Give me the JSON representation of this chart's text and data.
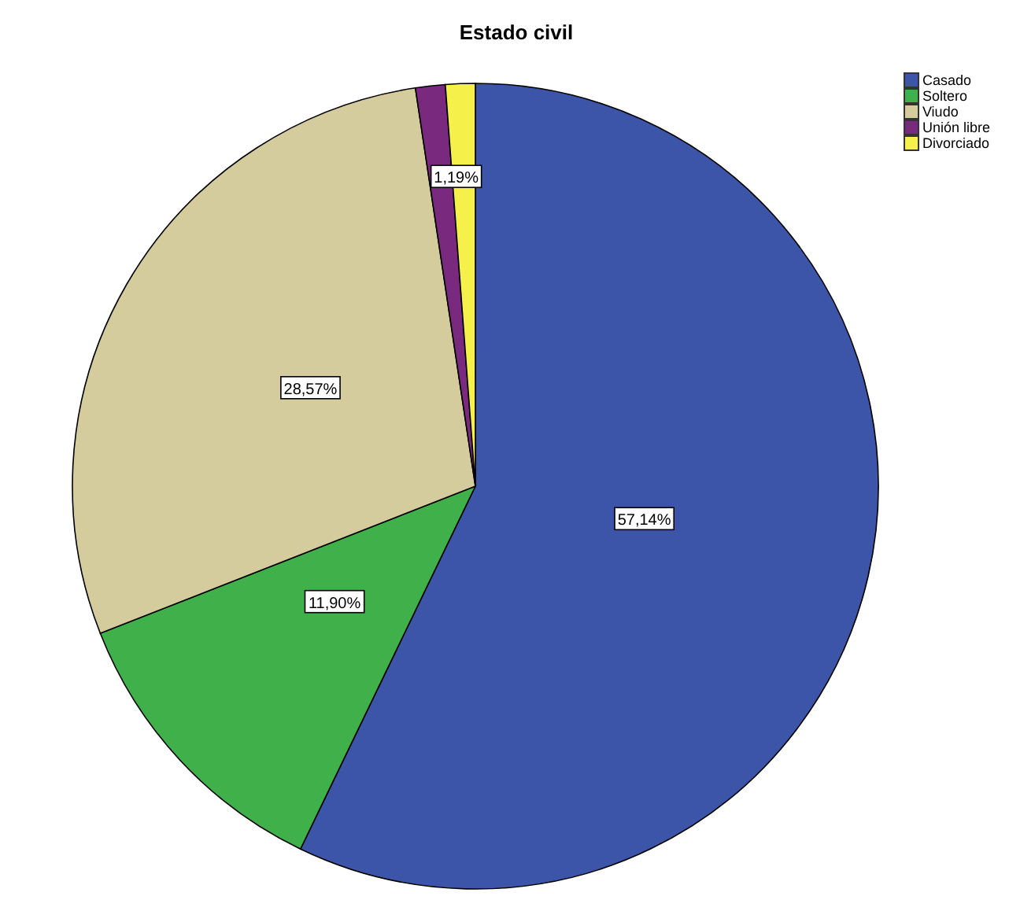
{
  "chart_data": {
    "type": "pie",
    "title": "Estado civil",
    "categories": [
      "Casado",
      "Soltero",
      "Viudo",
      "Unión libre",
      "Divorciado"
    ],
    "values": [
      57.14,
      11.9,
      28.57,
      1.19,
      1.19
    ],
    "colors": [
      "#3c55a8",
      "#3fb04a",
      "#d4cc9c",
      "#7a2a7e",
      "#f5f04a"
    ],
    "value_labels": [
      "57,14%",
      "11,90%",
      "28,57%",
      null,
      "1,19%"
    ],
    "legend": "top right"
  }
}
